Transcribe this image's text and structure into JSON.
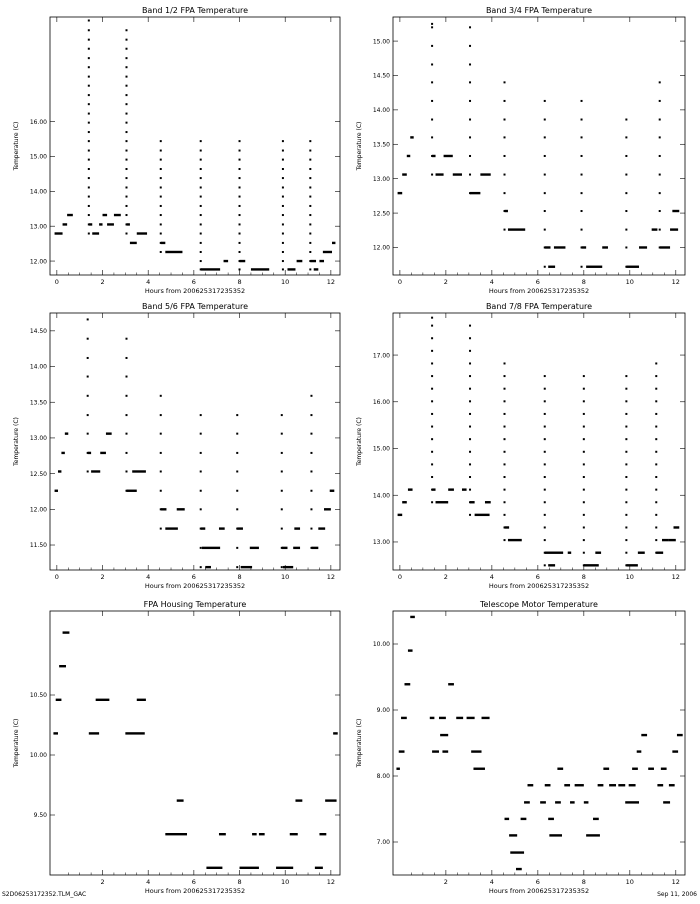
{
  "footer": {
    "left": "S2D06253172352.TLM_GAC",
    "right": "Sep 11, 2006"
  },
  "chart_data": [
    {
      "type": "scatter",
      "title": "Band 1/2 FPA Temperature",
      "xlabel": "Hours from 20062531723535​2",
      "ylabel": "Temperature (C)",
      "xlim": [
        -0.3,
        12.4
      ],
      "ylim": [
        11.6,
        19.0
      ],
      "xticks": [
        0,
        2,
        4,
        6,
        8,
        10,
        12
      ],
      "yticks": [
        12.0,
        13.0,
        14.0,
        15.0,
        16.0
      ],
      "ytick_decimals": 2,
      "levels": [
        11.76,
        12.0,
        12.26,
        12.52,
        12.79,
        13.05,
        13.32,
        13.58,
        13.85,
        14.11,
        14.38,
        14.64,
        14.91,
        15.17,
        15.44,
        15.7,
        15.97,
        16.23,
        16.5,
        16.76,
        17.03,
        17.29,
        17.56,
        17.82,
        18.09,
        18.35,
        18.62
      ],
      "runs": [
        [
          -0.1,
          0.25,
          12.79
        ],
        [
          0.25,
          0.45,
          13.05
        ],
        [
          0.45,
          0.7,
          13.32
        ],
        [
          1.4,
          1.55,
          13.05
        ],
        [
          1.55,
          1.85,
          12.79
        ],
        [
          1.85,
          2.0,
          13.05
        ],
        [
          2.0,
          2.2,
          13.32
        ],
        [
          2.2,
          2.5,
          13.05
        ],
        [
          2.5,
          2.8,
          13.32
        ],
        [
          3.05,
          3.2,
          13.05
        ],
        [
          3.2,
          3.5,
          12.52
        ],
        [
          3.5,
          3.95,
          12.79
        ],
        [
          4.55,
          4.75,
          12.52
        ],
        [
          4.75,
          5.5,
          12.26
        ],
        [
          6.3,
          7.15,
          11.76
        ],
        [
          7.3,
          7.5,
          12.0
        ],
        [
          8.0,
          8.25,
          12.0
        ],
        [
          8.25,
          8.45,
          11.5
        ],
        [
          8.5,
          9.3,
          11.76
        ],
        [
          9.9,
          10.15,
          11.5
        ],
        [
          10.1,
          10.45,
          11.76
        ],
        [
          10.5,
          10.75,
          12.0
        ],
        [
          11.1,
          11.35,
          12.0
        ],
        [
          11.25,
          11.45,
          11.76
        ],
        [
          11.5,
          11.7,
          12.0
        ],
        [
          11.65,
          12.05,
          12.26
        ],
        [
          12.05,
          12.2,
          12.52
        ]
      ],
      "spikes": [
        [
          1.4,
          12.79,
          18.9
        ],
        [
          3.05,
          12.79,
          18.62
        ],
        [
          4.55,
          12.26,
          15.44
        ],
        [
          6.3,
          11.76,
          15.44
        ],
        [
          8.0,
          11.76,
          15.44
        ],
        [
          9.9,
          11.76,
          15.44
        ],
        [
          11.1,
          11.76,
          15.44
        ]
      ]
    },
    {
      "type": "scatter",
      "title": "Band 3/4 FPA Temperature",
      "xlabel": "Hours from 20062531723535​2",
      "ylabel": "Temperature (C)",
      "xlim": [
        -0.3,
        12.4
      ],
      "ylim": [
        11.6,
        15.35
      ],
      "xticks": [
        0,
        2,
        4,
        6,
        8,
        10,
        12
      ],
      "yticks": [
        12.0,
        12.5,
        13.0,
        13.5,
        14.0,
        14.5,
        15.0
      ],
      "ytick_decimals": 2,
      "levels": [
        11.72,
        12.0,
        12.26,
        12.53,
        12.79,
        13.06,
        13.33,
        13.6,
        13.86,
        14.13,
        14.4,
        14.66,
        14.93,
        15.2
      ],
      "runs": [
        [
          -0.1,
          0.1,
          12.79
        ],
        [
          0.1,
          0.3,
          13.06
        ],
        [
          0.3,
          0.45,
          13.33
        ],
        [
          0.45,
          0.6,
          13.6
        ],
        [
          1.4,
          1.55,
          13.33
        ],
        [
          1.55,
          1.9,
          13.06
        ],
        [
          1.9,
          2.3,
          13.33
        ],
        [
          2.3,
          2.7,
          13.06
        ],
        [
          3.05,
          3.5,
          12.79
        ],
        [
          3.5,
          3.95,
          13.06
        ],
        [
          4.55,
          4.7,
          12.53
        ],
        [
          4.7,
          5.45,
          12.26
        ],
        [
          6.3,
          6.55,
          12.0
        ],
        [
          6.45,
          6.75,
          11.72
        ],
        [
          6.7,
          7.2,
          12.0
        ],
        [
          7.9,
          8.1,
          12.0
        ],
        [
          8.1,
          8.8,
          11.72
        ],
        [
          8.8,
          9.05,
          12.0
        ],
        [
          9.85,
          10.4,
          11.72
        ],
        [
          10.4,
          10.75,
          12.0
        ],
        [
          10.95,
          11.2,
          12.26
        ],
        [
          11.3,
          11.75,
          12.0
        ],
        [
          11.75,
          12.1,
          12.26
        ],
        [
          11.85,
          12.15,
          12.53
        ]
      ],
      "spikes": [
        [
          1.4,
          13.06,
          15.25
        ],
        [
          3.05,
          12.79,
          15.2
        ],
        [
          4.55,
          12.26,
          14.4
        ],
        [
          6.3,
          11.72,
          14.13
        ],
        [
          7.9,
          11.72,
          14.13
        ],
        [
          9.85,
          11.72,
          13.86
        ],
        [
          11.3,
          12.0,
          14.4
        ]
      ]
    },
    {
      "type": "scatter",
      "title": "Band 5/6 FPA Temperature",
      "xlabel": "Hours from 20062531723535​2",
      "ylabel": "Temperature (C)",
      "xlim": [
        -0.3,
        12.4
      ],
      "ylim": [
        11.15,
        14.75
      ],
      "xticks": [
        0,
        2,
        4,
        6,
        8,
        10,
        12
      ],
      "yticks": [
        11.5,
        12.0,
        12.5,
        13.0,
        13.5,
        14.0,
        14.5
      ],
      "ytick_decimals": 2,
      "levels": [
        11.19,
        11.46,
        11.73,
        12.0,
        12.26,
        12.53,
        12.79,
        13.06,
        13.32,
        13.59,
        13.86,
        14.12,
        14.39,
        14.66
      ],
      "runs": [
        [
          -0.1,
          0.05,
          12.26
        ],
        [
          0.05,
          0.2,
          12.53
        ],
        [
          0.2,
          0.35,
          12.79
        ],
        [
          0.35,
          0.5,
          13.06
        ],
        [
          1.35,
          1.5,
          12.79
        ],
        [
          1.5,
          1.9,
          12.53
        ],
        [
          1.9,
          2.15,
          12.79
        ],
        [
          2.15,
          2.4,
          13.06
        ],
        [
          3.05,
          3.5,
          12.26
        ],
        [
          3.3,
          3.9,
          12.53
        ],
        [
          4.55,
          4.8,
          12.0
        ],
        [
          4.75,
          5.3,
          11.73
        ],
        [
          5.25,
          5.6,
          12.0
        ],
        [
          6.3,
          6.5,
          11.73
        ],
        [
          6.35,
          7.15,
          11.46
        ],
        [
          6.5,
          6.75,
          11.19
        ],
        [
          7.1,
          7.35,
          11.73
        ],
        [
          7.9,
          8.15,
          11.73
        ],
        [
          8.05,
          8.55,
          11.19
        ],
        [
          8.45,
          8.85,
          11.46
        ],
        [
          9.85,
          10.1,
          11.46
        ],
        [
          9.9,
          10.35,
          11.19
        ],
        [
          10.35,
          10.65,
          11.46
        ],
        [
          10.4,
          10.65,
          11.73
        ],
        [
          11.15,
          11.45,
          11.46
        ],
        [
          11.45,
          11.75,
          11.73
        ],
        [
          11.7,
          12.0,
          12.0
        ],
        [
          11.95,
          12.15,
          12.26
        ]
      ],
      "spikes": [
        [
          1.35,
          12.53,
          14.66
        ],
        [
          3.05,
          12.26,
          14.39
        ],
        [
          4.55,
          11.73,
          13.59
        ],
        [
          6.3,
          11.19,
          13.32
        ],
        [
          7.9,
          11.19,
          13.32
        ],
        [
          9.85,
          11.19,
          13.32
        ],
        [
          11.15,
          11.46,
          13.59
        ]
      ]
    },
    {
      "type": "scatter",
      "title": "Band 7/8 FPA Temperature",
      "xlabel": "Hours from 20062531723535​2",
      "ylabel": "Temperature (C)",
      "xlim": [
        -0.3,
        12.4
      ],
      "ylim": [
        12.4,
        17.9
      ],
      "xticks": [
        0,
        2,
        4,
        6,
        8,
        10,
        12
      ],
      "yticks": [
        13.0,
        14.0,
        15.0,
        16.0,
        17.0
      ],
      "ytick_decimals": 2,
      "levels": [
        12.5,
        12.77,
        13.04,
        13.31,
        13.58,
        13.85,
        14.12,
        14.39,
        14.66,
        14.93,
        15.2,
        15.47,
        15.74,
        16.01,
        16.28,
        16.55,
        16.82,
        17.09,
        17.36,
        17.63
      ],
      "runs": [
        [
          -0.1,
          0.1,
          13.58
        ],
        [
          0.1,
          0.3,
          13.85
        ],
        [
          0.35,
          0.55,
          14.12
        ],
        [
          1.4,
          1.55,
          14.12
        ],
        [
          1.55,
          2.1,
          13.85
        ],
        [
          2.1,
          2.35,
          14.12
        ],
        [
          2.7,
          2.9,
          14.12
        ],
        [
          3.05,
          3.25,
          13.85
        ],
        [
          3.25,
          3.9,
          13.58
        ],
        [
          3.7,
          3.95,
          13.85
        ],
        [
          4.55,
          4.75,
          13.31
        ],
        [
          4.7,
          5.3,
          13.04
        ],
        [
          6.3,
          7.1,
          12.77
        ],
        [
          6.45,
          6.75,
          12.5
        ],
        [
          7.3,
          7.45,
          12.77
        ],
        [
          8.0,
          8.65,
          12.5
        ],
        [
          8.5,
          8.75,
          12.77
        ],
        [
          9.85,
          10.35,
          12.5
        ],
        [
          10.35,
          10.65,
          12.77
        ],
        [
          11.15,
          11.45,
          12.77
        ],
        [
          11.4,
          11.7,
          13.04
        ],
        [
          11.7,
          12.0,
          13.04
        ],
        [
          11.9,
          12.15,
          13.31
        ]
      ],
      "spikes": [
        [
          1.4,
          13.85,
          17.8
        ],
        [
          3.05,
          13.58,
          17.63
        ],
        [
          4.55,
          13.04,
          16.82
        ],
        [
          6.3,
          12.5,
          16.55
        ],
        [
          8.0,
          12.5,
          16.55
        ],
        [
          9.85,
          12.5,
          16.55
        ],
        [
          11.15,
          12.77,
          16.82
        ]
      ]
    },
    {
      "type": "scatter",
      "title": "FPA Housing Temperature",
      "xlabel": "Hours from 20062531723535​2",
      "ylabel": "Temperature (C)",
      "xlim": [
        -0.3,
        12.4
      ],
      "ylim": [
        9.0,
        11.2
      ],
      "xticks": [
        2,
        4,
        6,
        8,
        10,
        12
      ],
      "yticks": [
        9.5,
        10.0,
        10.5
      ],
      "ytick_decimals": 2,
      "levels": [
        9.06,
        9.34,
        9.62,
        9.9,
        10.18,
        10.46,
        10.74,
        11.02
      ],
      "runs": [
        [
          -0.15,
          0.05,
          10.18
        ],
        [
          -0.05,
          0.2,
          10.46
        ],
        [
          0.1,
          0.4,
          10.74
        ],
        [
          0.25,
          0.55,
          11.02
        ],
        [
          1.4,
          1.85,
          10.18
        ],
        [
          1.7,
          2.3,
          10.46
        ],
        [
          3.0,
          3.85,
          10.18
        ],
        [
          3.5,
          3.9,
          10.46
        ],
        [
          4.75,
          5.7,
          9.34
        ],
        [
          5.25,
          5.55,
          9.62
        ],
        [
          6.55,
          7.25,
          9.06
        ],
        [
          7.1,
          7.4,
          9.34
        ],
        [
          8.0,
          8.85,
          9.06
        ],
        [
          8.55,
          8.75,
          9.34
        ],
        [
          8.85,
          9.1,
          9.34
        ],
        [
          9.6,
          10.35,
          9.06
        ],
        [
          10.2,
          10.55,
          9.34
        ],
        [
          10.45,
          10.75,
          9.62
        ],
        [
          11.3,
          11.65,
          9.06
        ],
        [
          11.5,
          11.8,
          9.34
        ],
        [
          11.75,
          12.25,
          9.62
        ],
        [
          12.1,
          12.3,
          10.18
        ]
      ],
      "spikes": []
    },
    {
      "type": "scatter",
      "title": "Telescope Motor Temperature",
      "xlabel": "Hours from 20062531723535​2",
      "ylabel": "Temperature (C)",
      "xlim": [
        -0.3,
        12.4
      ],
      "ylim": [
        6.5,
        10.5
      ],
      "xticks": [
        2,
        4,
        6,
        8,
        10,
        12
      ],
      "yticks": [
        7.0,
        8.0,
        9.0,
        10.0
      ],
      "ytick_decimals": 2,
      "levels": [
        6.59,
        6.84,
        7.1,
        7.35,
        7.6,
        7.86,
        8.11,
        8.37,
        8.62,
        8.88,
        9.13,
        9.39,
        9.64,
        9.9,
        10.15,
        10.41
      ],
      "runs": [
        [
          -0.15,
          0.0,
          8.11
        ],
        [
          -0.05,
          0.2,
          8.37
        ],
        [
          0.05,
          0.3,
          8.88
        ],
        [
          0.2,
          0.45,
          9.39
        ],
        [
          0.35,
          0.55,
          9.9
        ],
        [
          0.45,
          0.65,
          10.41
        ],
        [
          1.3,
          1.5,
          8.88
        ],
        [
          1.4,
          1.7,
          8.37
        ],
        [
          1.7,
          2.0,
          8.88
        ],
        [
          1.75,
          2.1,
          8.62
        ],
        [
          1.85,
          2.1,
          8.37
        ],
        [
          2.1,
          2.35,
          9.39
        ],
        [
          2.45,
          2.75,
          8.88
        ],
        [
          2.9,
          3.25,
          8.88
        ],
        [
          3.1,
          3.55,
          8.37
        ],
        [
          3.2,
          3.7,
          8.11
        ],
        [
          3.55,
          3.9,
          8.88
        ],
        [
          4.55,
          4.75,
          7.35
        ],
        [
          4.75,
          5.1,
          7.1
        ],
        [
          4.8,
          5.4,
          6.84
        ],
        [
          5.05,
          5.3,
          6.59
        ],
        [
          5.25,
          5.5,
          7.35
        ],
        [
          5.4,
          5.65,
          7.6
        ],
        [
          5.55,
          5.8,
          7.86
        ],
        [
          6.1,
          6.35,
          7.6
        ],
        [
          6.3,
          6.55,
          7.86
        ],
        [
          6.45,
          6.7,
          7.35
        ],
        [
          6.5,
          7.05,
          7.1
        ],
        [
          6.75,
          7.0,
          7.6
        ],
        [
          6.85,
          7.1,
          8.11
        ],
        [
          7.15,
          7.4,
          7.86
        ],
        [
          7.4,
          7.6,
          7.6
        ],
        [
          7.6,
          8.0,
          7.86
        ],
        [
          8.0,
          8.2,
          7.6
        ],
        [
          8.1,
          8.7,
          7.1
        ],
        [
          8.4,
          8.65,
          7.35
        ],
        [
          8.6,
          8.85,
          7.86
        ],
        [
          8.85,
          9.1,
          8.11
        ],
        [
          9.1,
          9.4,
          7.86
        ],
        [
          9.5,
          9.8,
          7.86
        ],
        [
          9.8,
          10.4,
          7.6
        ],
        [
          9.95,
          10.25,
          7.86
        ],
        [
          10.1,
          10.35,
          8.11
        ],
        [
          10.3,
          10.5,
          8.37
        ],
        [
          10.5,
          10.75,
          8.62
        ],
        [
          10.8,
          11.05,
          8.11
        ],
        [
          11.2,
          11.45,
          7.86
        ],
        [
          11.35,
          11.6,
          8.11
        ],
        [
          11.45,
          11.75,
          7.6
        ],
        [
          11.7,
          11.95,
          7.86
        ],
        [
          11.85,
          12.1,
          8.37
        ],
        [
          12.05,
          12.3,
          8.62
        ]
      ],
      "spikes": []
    }
  ]
}
